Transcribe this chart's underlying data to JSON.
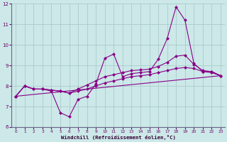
{
  "xlabel": "Windchill (Refroidissement éolien,°C)",
  "xlim": [
    -0.5,
    23.5
  ],
  "ylim": [
    6,
    12
  ],
  "yticks": [
    6,
    7,
    8,
    9,
    10,
    11,
    12
  ],
  "xticks": [
    0,
    1,
    2,
    3,
    4,
    5,
    6,
    7,
    8,
    9,
    10,
    11,
    12,
    13,
    14,
    15,
    16,
    17,
    18,
    19,
    20,
    21,
    22,
    23
  ],
  "background_color": "#cce8e8",
  "grid_color": "#aacccc",
  "line_color": "#880088",
  "line1_y": [
    7.5,
    8.0,
    7.85,
    7.85,
    7.75,
    6.7,
    6.5,
    7.35,
    7.5,
    8.1,
    9.35,
    9.55,
    8.45,
    8.6,
    8.65,
    8.7,
    9.3,
    10.3,
    11.85,
    11.2,
    9.1,
    8.7,
    8.7,
    8.5
  ],
  "line2_y": [
    7.5,
    8.0,
    7.85,
    7.85,
    7.8,
    7.75,
    7.65,
    7.75,
    7.85,
    8.0,
    8.15,
    8.25,
    8.35,
    8.45,
    8.5,
    8.55,
    8.65,
    8.75,
    8.85,
    8.9,
    8.85,
    8.7,
    8.65,
    8.5
  ],
  "line3_y": [
    7.5,
    8.0,
    7.85,
    7.85,
    7.8,
    7.75,
    7.65,
    7.85,
    8.05,
    8.25,
    8.45,
    8.55,
    8.65,
    8.75,
    8.78,
    8.82,
    8.95,
    9.15,
    9.45,
    9.5,
    9.05,
    8.75,
    8.7,
    8.5
  ],
  "line4_x": [
    0,
    23
  ],
  "line4_y": [
    7.5,
    8.5
  ]
}
